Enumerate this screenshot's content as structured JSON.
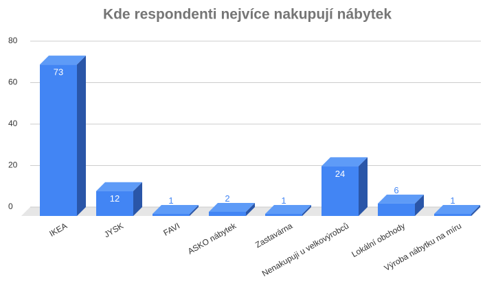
{
  "chart_data": {
    "type": "bar3d",
    "title": "Kde respondenti nejvíce nakupují nábytek",
    "categories": [
      "IKEA",
      "JYSK",
      "FAVI",
      "ASKO nábytek",
      "Zastavárna",
      "Nenakupuji u velkovýrobců",
      "Lokální obchody",
      "Výroba nábytku na míru"
    ],
    "values": [
      73,
      12,
      1,
      2,
      1,
      24,
      6,
      1
    ],
    "color": "#4285f4",
    "ylim": [
      0,
      80
    ],
    "yticks": [
      0,
      20,
      40,
      60,
      80
    ],
    "grid": true
  }
}
